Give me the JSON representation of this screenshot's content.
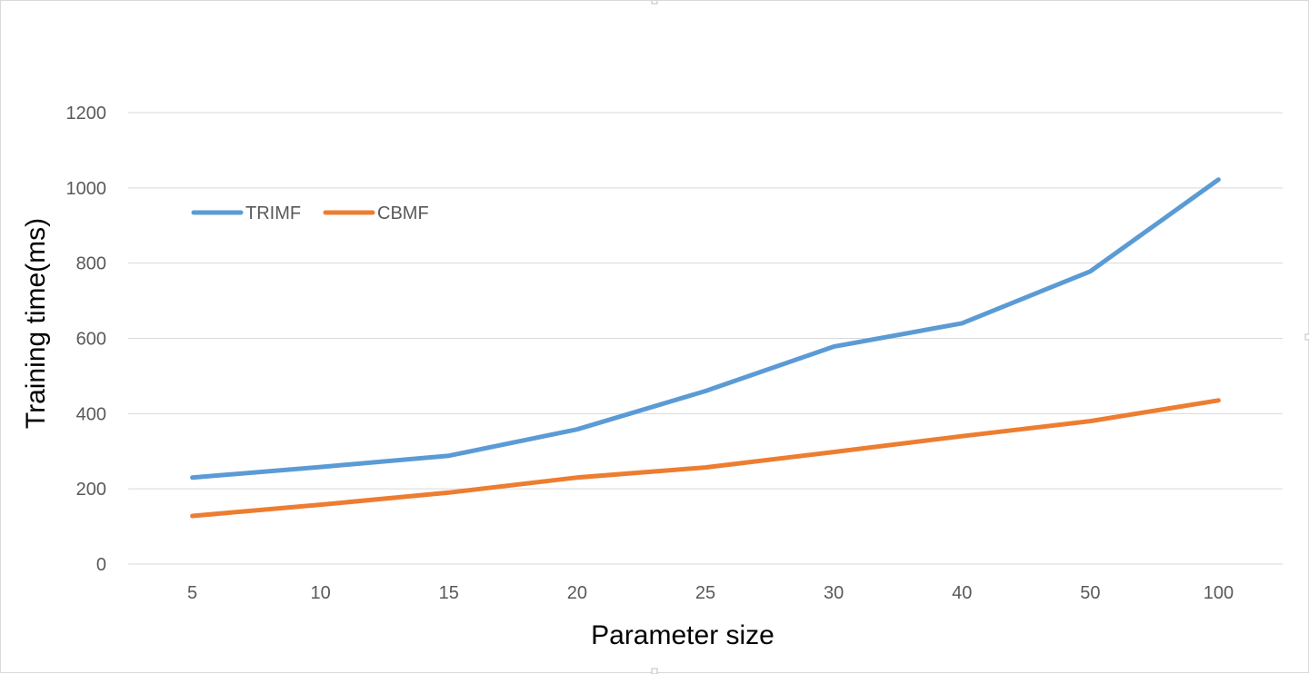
{
  "chart_data": {
    "type": "line",
    "categories": [
      "5",
      "10",
      "15",
      "20",
      "25",
      "30",
      "40",
      "50",
      "100"
    ],
    "series": [
      {
        "name": "TRIMF",
        "color": "#5b9bd5",
        "values": [
          230,
          258,
          288,
          358,
          460,
          578,
          640,
          778,
          1022
        ]
      },
      {
        "name": "CBMF",
        "color": "#ed7d31",
        "values": [
          128,
          158,
          190,
          230,
          257,
          298,
          340,
          380,
          435
        ]
      }
    ],
    "title": "",
    "xlabel": "Parameter size",
    "ylabel": "Training time(ms)",
    "ylim": [
      0,
      1200
    ],
    "yticks": [
      0,
      200,
      400,
      600,
      800,
      1000,
      1200
    ],
    "grid": true,
    "legend_position": "top-left"
  }
}
